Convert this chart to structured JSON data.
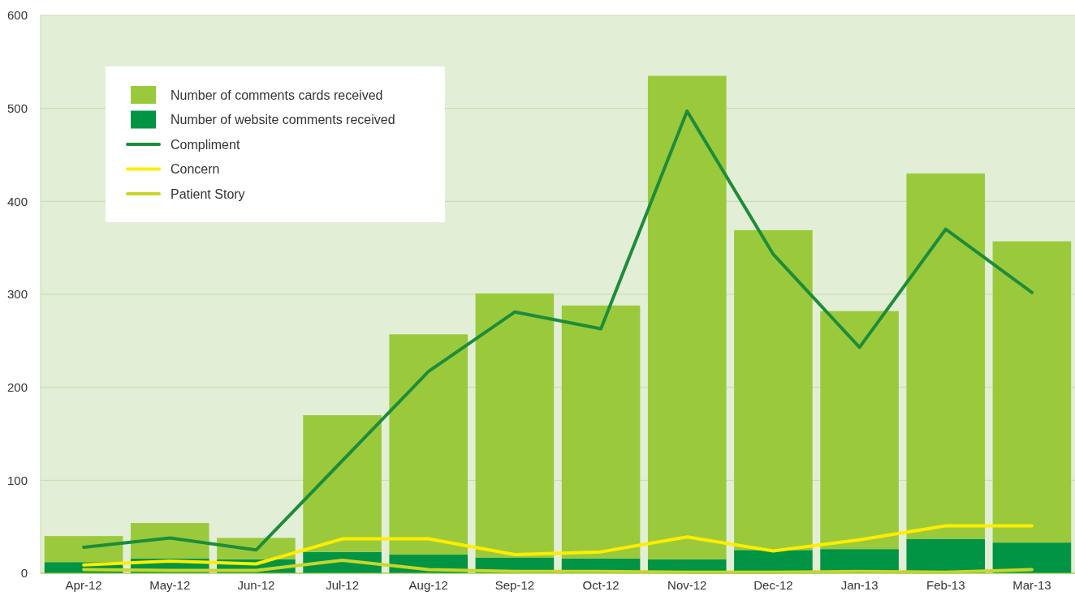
{
  "chart_data": {
    "type": "bar",
    "categories": [
      "Apr-12",
      "May-12",
      "Jun-12",
      "Jul-12",
      "Aug-12",
      "Sep-12",
      "Oct-12",
      "Nov-12",
      "Dec-12",
      "Jan-13",
      "Feb-13",
      "Mar-13"
    ],
    "series": [
      {
        "name": "Number of website comments received",
        "color": "#009444",
        "values": [
          12,
          16,
          15,
          23,
          20,
          17,
          16,
          15,
          25,
          26,
          37,
          33
        ]
      },
      {
        "name": "Number of comments cards received",
        "color": "#9aca3c",
        "values": [
          28,
          38,
          23,
          147,
          237,
          284,
          272,
          520,
          344,
          256,
          393,
          324
        ]
      },
      {
        "name": "Compliment",
        "type": "line",
        "color": "#1e8c3a",
        "values": [
          28,
          38,
          25,
          121,
          217,
          281,
          263,
          497,
          343,
          243,
          370,
          302
        ]
      },
      {
        "name": "Concern",
        "type": "line",
        "color": "#ffed00",
        "values": [
          9,
          13,
          10,
          37,
          37,
          20,
          23,
          39,
          24,
          36,
          51,
          51
        ]
      },
      {
        "name": "Patient Story",
        "type": "line",
        "color": "#c8d62a",
        "values": [
          4,
          3,
          3,
          14,
          4,
          2,
          2,
          1,
          1,
          2,
          1,
          4
        ]
      }
    ],
    "stacked": true,
    "ylim": [
      0,
      600
    ],
    "yticks": [
      0,
      100,
      200,
      300,
      400,
      500,
      600
    ],
    "grid": "y",
    "legend": "top left",
    "line_style": "solid",
    "marker": "none"
  }
}
